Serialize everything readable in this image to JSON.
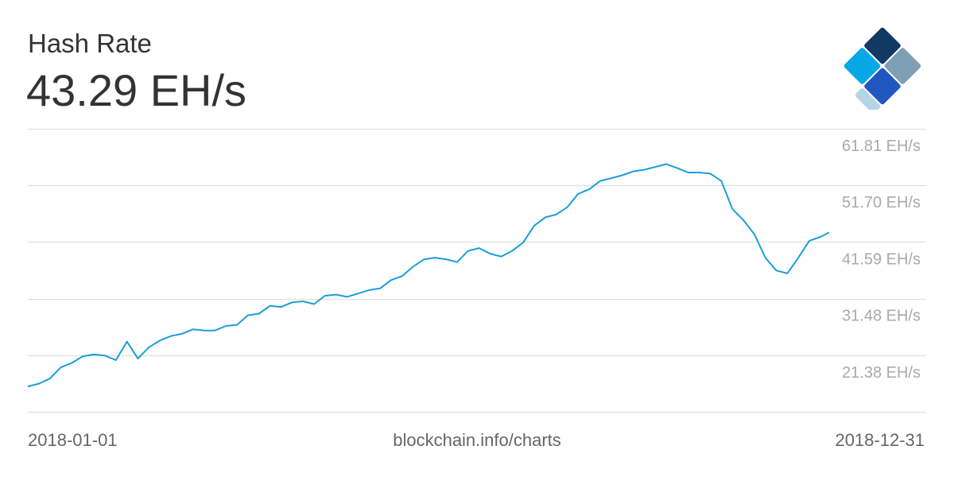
{
  "header": {
    "title": "Hash Rate",
    "current_value": "43.29 EH/s"
  },
  "logo": {
    "icon": "blockchain-logo-icon"
  },
  "footer": {
    "start_date": "2018-01-01",
    "source": "blockchain.info/charts",
    "end_date": "2018-12-31"
  },
  "colors": {
    "line": "#1a9fd8",
    "grid": "#dddddd",
    "tick": "#aaaaaa",
    "text": "#333333",
    "logo_navy": "#123964",
    "logo_grey": "#7e9fb4",
    "logo_blue": "#2157c1",
    "logo_cyan": "#06a8e6",
    "logo_light": "#b5d4e6"
  },
  "chart_data": {
    "type": "line",
    "title": "Hash Rate",
    "xlabel": "",
    "ylabel": "",
    "x_range": [
      "2018-01-01",
      "2018-12-31"
    ],
    "ylim": [
      11.27,
      61.81
    ],
    "y_ticks": [
      21.38,
      31.48,
      41.59,
      51.7,
      61.81
    ],
    "y_tick_labels": [
      "21.38 EH/s",
      "31.48 EH/s",
      "41.59 EH/s",
      "51.70 EH/s",
      "61.81 EH/s"
    ],
    "grid": true,
    "series": [
      {
        "name": "",
        "unit": "EH/s",
        "points": [
          [
            "2018-01-01",
            15.8
          ],
          [
            "2018-01-06",
            16.3
          ],
          [
            "2018-01-11",
            17.2
          ],
          [
            "2018-01-16",
            19.2
          ],
          [
            "2018-01-21",
            20.0
          ],
          [
            "2018-01-26",
            21.2
          ],
          [
            "2018-01-31",
            21.5
          ],
          [
            "2018-02-05",
            21.3
          ],
          [
            "2018-02-10",
            20.5
          ],
          [
            "2018-02-15",
            23.8
          ],
          [
            "2018-02-20",
            20.8
          ],
          [
            "2018-02-25",
            22.8
          ],
          [
            "2018-03-02",
            24.0
          ],
          [
            "2018-03-07",
            24.8
          ],
          [
            "2018-03-12",
            25.2
          ],
          [
            "2018-03-17",
            26.0
          ],
          [
            "2018-03-22",
            25.8
          ],
          [
            "2018-03-27",
            25.8
          ],
          [
            "2018-04-01",
            26.6
          ],
          [
            "2018-04-06",
            26.8
          ],
          [
            "2018-04-11",
            28.5
          ],
          [
            "2018-04-16",
            28.8
          ],
          [
            "2018-04-21",
            30.2
          ],
          [
            "2018-04-26",
            30.0
          ],
          [
            "2018-05-01",
            30.8
          ],
          [
            "2018-05-06",
            31.0
          ],
          [
            "2018-05-11",
            30.5
          ],
          [
            "2018-05-16",
            32.0
          ],
          [
            "2018-05-21",
            32.2
          ],
          [
            "2018-05-26",
            31.8
          ],
          [
            "2018-05-31",
            32.4
          ],
          [
            "2018-06-05",
            33.0
          ],
          [
            "2018-06-10",
            33.3
          ],
          [
            "2018-06-15",
            34.8
          ],
          [
            "2018-06-20",
            35.5
          ],
          [
            "2018-06-25",
            37.2
          ],
          [
            "2018-06-30",
            38.5
          ],
          [
            "2018-07-05",
            38.8
          ],
          [
            "2018-07-10",
            38.5
          ],
          [
            "2018-07-15",
            38.0
          ],
          [
            "2018-07-20",
            40.0
          ],
          [
            "2018-07-25",
            40.5
          ],
          [
            "2018-07-30",
            39.5
          ],
          [
            "2018-08-04",
            39.0
          ],
          [
            "2018-08-09",
            40.0
          ],
          [
            "2018-08-14",
            41.5
          ],
          [
            "2018-08-19",
            44.5
          ],
          [
            "2018-08-24",
            46.0
          ],
          [
            "2018-08-29",
            46.5
          ],
          [
            "2018-09-03",
            47.8
          ],
          [
            "2018-09-08",
            50.2
          ],
          [
            "2018-09-13",
            51.0
          ],
          [
            "2018-09-18",
            52.5
          ],
          [
            "2018-09-23",
            53.0
          ],
          [
            "2018-09-28",
            53.5
          ],
          [
            "2018-10-03",
            54.2
          ],
          [
            "2018-10-08",
            54.5
          ],
          [
            "2018-10-13",
            55.0
          ],
          [
            "2018-10-18",
            55.5
          ],
          [
            "2018-10-23",
            54.8
          ],
          [
            "2018-10-28",
            54.0
          ],
          [
            "2018-11-02",
            54.0
          ],
          [
            "2018-11-07",
            53.8
          ],
          [
            "2018-11-12",
            52.5
          ],
          [
            "2018-11-17",
            47.5
          ],
          [
            "2018-11-22",
            45.5
          ],
          [
            "2018-11-27",
            43.0
          ],
          [
            "2018-12-02",
            38.8
          ],
          [
            "2018-12-07",
            36.5
          ],
          [
            "2018-12-12",
            36.0
          ],
          [
            "2018-12-17",
            38.8
          ],
          [
            "2018-12-22",
            41.8
          ],
          [
            "2018-12-27",
            42.5
          ],
          [
            "2018-12-31",
            43.3
          ]
        ]
      }
    ]
  }
}
